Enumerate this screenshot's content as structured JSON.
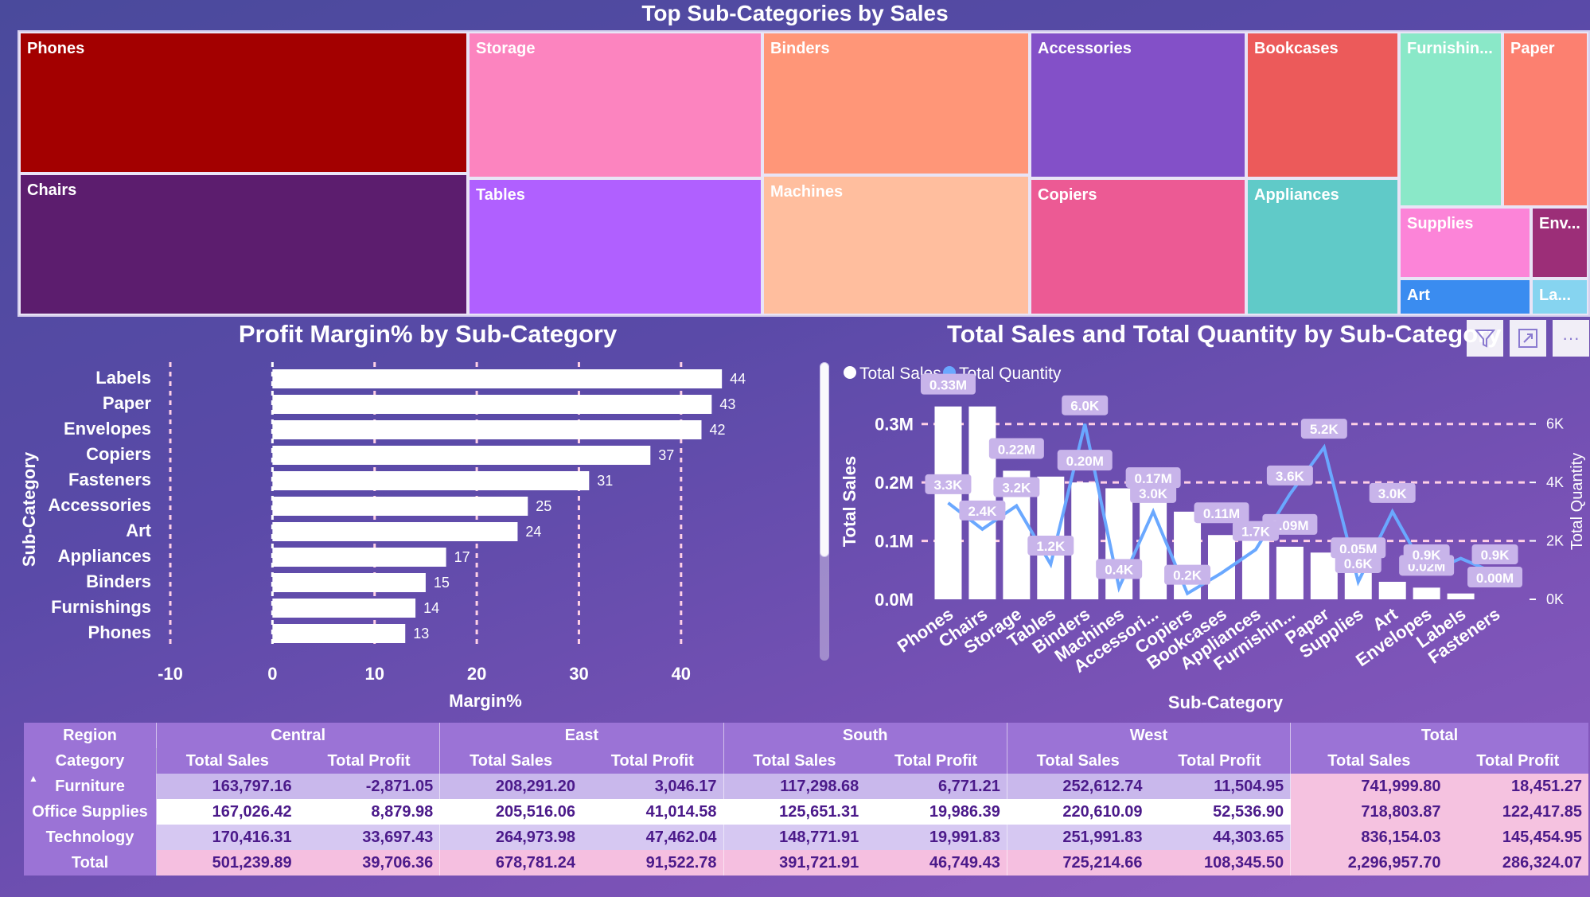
{
  "treemap": {
    "title": "Top Sub-Categories by Sales",
    "tiles": [
      {
        "label": "Phones",
        "color": "#a30000"
      },
      {
        "label": "Chairs",
        "color": "#5c1d6e"
      },
      {
        "label": "Storage",
        "color": "#fc84bf"
      },
      {
        "label": "Tables",
        "color": "#b060ff"
      },
      {
        "label": "Binders",
        "color": "#ff9678"
      },
      {
        "label": "Machines",
        "color": "#ffbe9e"
      },
      {
        "label": "Accessories",
        "color": "#8350c8"
      },
      {
        "label": "Copiers",
        "color": "#ec5a94"
      },
      {
        "label": "Bookcases",
        "color": "#ec5a5a"
      },
      {
        "label": "Appliances",
        "color": "#60cac8"
      },
      {
        "label": "Furnishin...",
        "color": "#8ae8c8"
      },
      {
        "label": "Paper",
        "color": "#fc8070"
      },
      {
        "label": "Supplies",
        "color": "#fc84d8"
      },
      {
        "label": "Env...",
        "color": "#9c2e78"
      },
      {
        "label": "Art",
        "color": "#3a8cf0"
      },
      {
        "label": "La...",
        "color": "#86d4f0"
      }
    ]
  },
  "chart_data": [
    {
      "type": "bar",
      "title": "Profit Margin% by Sub-Category",
      "xlabel": "Margin%",
      "ylabel": "Sub-Category",
      "categories": [
        "Labels",
        "Paper",
        "Envelopes",
        "Copiers",
        "Fasteners",
        "Accessories",
        "Art",
        "Appliances",
        "Binders",
        "Furnishings",
        "Phones"
      ],
      "values": [
        44,
        43,
        42,
        37,
        31,
        25,
        24,
        17,
        15,
        14,
        13
      ],
      "xlim": [
        -10,
        45
      ],
      "xticks": [
        "-10",
        "0",
        "10",
        "20",
        "30",
        "40"
      ],
      "bar_color": "#ffffff"
    },
    {
      "type": "bar+line",
      "title": "Total Sales and Total Quantity by Sub-Category",
      "xlabel": "Sub-Category",
      "ylabel": "Total Sales",
      "y2label": "Total Quantity",
      "legend": [
        "Total Sales",
        "Total Quantity"
      ],
      "legend_colors": [
        "#ffffff",
        "#6aa8ff"
      ],
      "categories": [
        "Phones",
        "Chairs",
        "Storage",
        "Tables",
        "Binders",
        "Machines",
        "Accessori...",
        "Copiers",
        "Bookcases",
        "Appliances",
        "Furnishin...",
        "Paper",
        "Supplies",
        "Art",
        "Envelopes",
        "Labels",
        "Fasteners"
      ],
      "sales": [
        0.33,
        0.33,
        0.22,
        0.21,
        0.2,
        0.19,
        0.17,
        0.15,
        0.11,
        0.11,
        0.09,
        0.08,
        0.05,
        0.03,
        0.02,
        0.01,
        0.0
      ],
      "sales_labels": [
        "0.33M",
        "",
        "0.22M",
        "",
        "0.20M",
        "",
        "0.17M",
        "",
        "0.11M",
        "",
        "0.09M",
        "",
        "0.05M",
        "",
        "0.02M",
        "",
        "0.00M"
      ],
      "quantity": [
        3.3,
        2.4,
        3.2,
        1.2,
        6.0,
        0.4,
        3.0,
        0.2,
        0.9,
        1.7,
        3.6,
        5.2,
        0.6,
        3.0,
        0.9,
        1.4,
        0.9
      ],
      "quantity_labels": [
        "3.3K",
        "2.4K",
        "3.2K",
        "1.2K",
        "6.0K",
        "0.4K",
        "3.0K",
        "0.2K",
        "",
        "1.7K",
        "3.6K",
        "5.2K",
        "0.6K",
        "3.0K",
        "0.9K",
        "",
        "0.9K"
      ],
      "ylim": [
        0,
        0.35
      ],
      "yticks": [
        "0.0M",
        "0.1M",
        "0.2M",
        "0.3M"
      ],
      "y2lim": [
        0,
        7
      ],
      "y2ticks": [
        "0K",
        "2K",
        "4K",
        "6K"
      ]
    }
  ],
  "matrix": {
    "region_label": "Region",
    "category_label": "Category",
    "sort_icon": "triangle-up-icon",
    "regions": [
      "Central",
      "East",
      "South",
      "West",
      "Total"
    ],
    "measures": [
      "Total Sales",
      "Total Profit"
    ],
    "rows": [
      {
        "label": "Furniture",
        "values": [
          "163,797.16",
          "-2,871.05",
          "208,291.20",
          "3,046.17",
          "117,298.68",
          "6,771.21",
          "252,612.74",
          "11,504.95",
          "741,999.80",
          "18,451.27"
        ]
      },
      {
        "label": "Office Supplies",
        "values": [
          "167,026.42",
          "8,879.98",
          "205,516.06",
          "41,014.58",
          "125,651.31",
          "19,986.39",
          "220,610.09",
          "52,536.90",
          "718,803.87",
          "122,417.85"
        ]
      },
      {
        "label": "Technology",
        "values": [
          "170,416.31",
          "33,697.43",
          "264,973.98",
          "47,462.04",
          "148,771.91",
          "19,991.83",
          "251,991.83",
          "44,303.65",
          "836,154.03",
          "145,454.95"
        ]
      },
      {
        "label": "Total",
        "values": [
          "501,239.89",
          "39,706.36",
          "678,781.24",
          "91,522.78",
          "391,721.91",
          "46,749.43",
          "725,214.66",
          "108,345.50",
          "2,296,957.70",
          "286,324.07"
        ]
      }
    ]
  },
  "toolbar": {
    "icons": [
      "filter-icon",
      "focus-mode-icon",
      "more-options-icon"
    ],
    "more_label": "···"
  }
}
